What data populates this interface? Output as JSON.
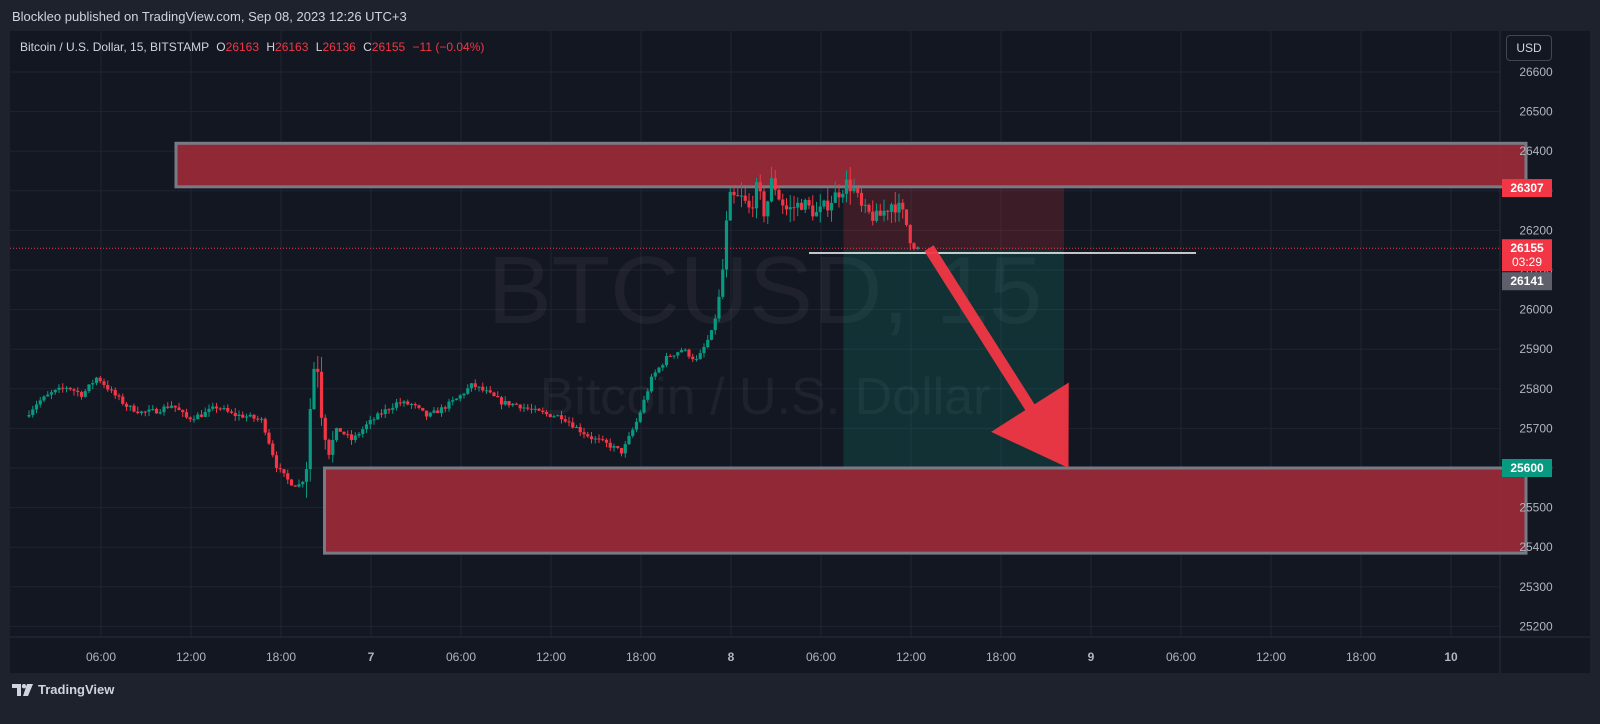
{
  "header": {
    "publisher_text": "Blockleo published on TradingView.com, Sep 08, 2023 12:26 UTC+3"
  },
  "legend": {
    "symbol": "Bitcoin / U.S. Dollar, 15, BITSTAMP",
    "o_label": "O",
    "o_value": "26163",
    "h_label": "H",
    "h_value": "26163",
    "l_label": "L",
    "l_value": "26136",
    "c_label": "C",
    "c_value": "26155",
    "change": "−11 (−0.04%)"
  },
  "currency_button": "USD",
  "watermark": {
    "main": "BTCUSD, 15",
    "sub": "Bitcoin / U.S. Dollar"
  },
  "footer": {
    "brand": "TradingView"
  },
  "colors": {
    "up": "#089981",
    "down": "#f23645",
    "zone": "#9c2a37",
    "zone_border": "#787b86",
    "background": "#131722",
    "arrow": "#f23645"
  },
  "chart_data": {
    "type": "candlestick",
    "symbol": "BTCUSD",
    "interval": "15",
    "exchange": "BITSTAMP",
    "ylim": [
      25150,
      26650
    ],
    "y_ticks": [
      26600,
      26500,
      26400,
      26300,
      26200,
      26100,
      26000,
      25900,
      25800,
      25700,
      25600,
      25500,
      25400,
      25300,
      25200
    ],
    "x_ticks": [
      "06:00",
      "12:00",
      "18:00",
      "7",
      "06:00",
      "12:00",
      "18:00",
      "8",
      "06:00",
      "12:00",
      "18:00",
      "9",
      "06:00",
      "12:00",
      "18:00",
      "10"
    ],
    "x_tick_hours": [
      6,
      12,
      18,
      24,
      30,
      36,
      42,
      48,
      54,
      60,
      66,
      72,
      78,
      84,
      90,
      96
    ],
    "x_range_hours": [
      0.5,
      101
    ],
    "grid": true,
    "price_path": [
      [
        1.2,
        25730
      ],
      [
        2,
        25765
      ],
      [
        3,
        25790
      ],
      [
        4,
        25805
      ],
      [
        5,
        25785
      ],
      [
        6,
        25830
      ],
      [
        7,
        25790
      ],
      [
        8,
        25755
      ],
      [
        9,
        25740
      ],
      [
        10,
        25745
      ],
      [
        11,
        25760
      ],
      [
        12,
        25725
      ],
      [
        13,
        25735
      ],
      [
        14,
        25755
      ],
      [
        15,
        25735
      ],
      [
        16,
        25730
      ],
      [
        17,
        25720
      ],
      [
        18,
        25600
      ],
      [
        18.8,
        25565
      ],
      [
        19.4,
        25555
      ],
      [
        19.9,
        25580
      ],
      [
        20.3,
        25810
      ],
      [
        20.6,
        25900
      ],
      [
        21,
        25720
      ],
      [
        21.5,
        25640
      ],
      [
        22,
        25700
      ],
      [
        23,
        25670
      ],
      [
        24,
        25710
      ],
      [
        25,
        25740
      ],
      [
        26,
        25765
      ],
      [
        27,
        25760
      ],
      [
        28,
        25730
      ],
      [
        29,
        25750
      ],
      [
        30,
        25775
      ],
      [
        31,
        25810
      ],
      [
        32,
        25790
      ],
      [
        33,
        25765
      ],
      [
        34,
        25760
      ],
      [
        35,
        25745
      ],
      [
        36,
        25735
      ],
      [
        37,
        25730
      ],
      [
        38,
        25700
      ],
      [
        39,
        25675
      ],
      [
        40,
        25660
      ],
      [
        41,
        25640
      ],
      [
        42,
        25720
      ],
      [
        43,
        25830
      ],
      [
        44,
        25880
      ],
      [
        45,
        25900
      ],
      [
        46,
        25870
      ],
      [
        47,
        25945
      ],
      [
        47.6,
        26050
      ],
      [
        47.9,
        26200
      ],
      [
        48.2,
        26280
      ],
      [
        49,
        26280
      ],
      [
        49.5,
        26250
      ],
      [
        50,
        26310
      ],
      [
        50.5,
        26240
      ],
      [
        51,
        26330
      ],
      [
        51.5,
        26280
      ],
      [
        52,
        26250
      ],
      [
        53,
        26270
      ],
      [
        54,
        26240
      ],
      [
        55,
        26280
      ],
      [
        56,
        26320
      ],
      [
        56.5,
        26300
      ],
      [
        57,
        26250
      ],
      [
        58,
        26230
      ],
      [
        59,
        26270
      ],
      [
        59.6,
        26250
      ],
      [
        60,
        26210
      ],
      [
        60.3,
        26170
      ],
      [
        60.5,
        26155
      ]
    ],
    "last_price": 26155,
    "countdown": "03:29",
    "marked_prices": [
      {
        "label": "26307",
        "value": 26307,
        "color": "#f23645"
      },
      {
        "label": "26155",
        "value": 26155,
        "color": "#f23645"
      },
      {
        "label": "26141",
        "value": 26141,
        "color": "#5d606b"
      },
      {
        "label": "25600",
        "value": 25600,
        "color": "#089981"
      }
    ],
    "zones": [
      {
        "name": "resistance-zone",
        "x_start_hours": 11,
        "x_end_hours": 101,
        "y_top": 26420,
        "y_bottom": 26310
      },
      {
        "name": "support-zone",
        "x_start_hours": 20.9,
        "x_end_hours": 101,
        "y_top": 25600,
        "y_bottom": 25385
      }
    ],
    "short_position": {
      "x_start_hours": 55.5,
      "x_end_hours": 70.2,
      "entry": 26150,
      "stop": 26307,
      "target": 25600
    },
    "level_line": {
      "value": 26143,
      "x_start_hours": 53.2,
      "x_end_hours": 79
    },
    "arrow": {
      "from_hours": 61.2,
      "from_price": 26155,
      "to_hours": 70.5,
      "to_price": 25600
    }
  }
}
